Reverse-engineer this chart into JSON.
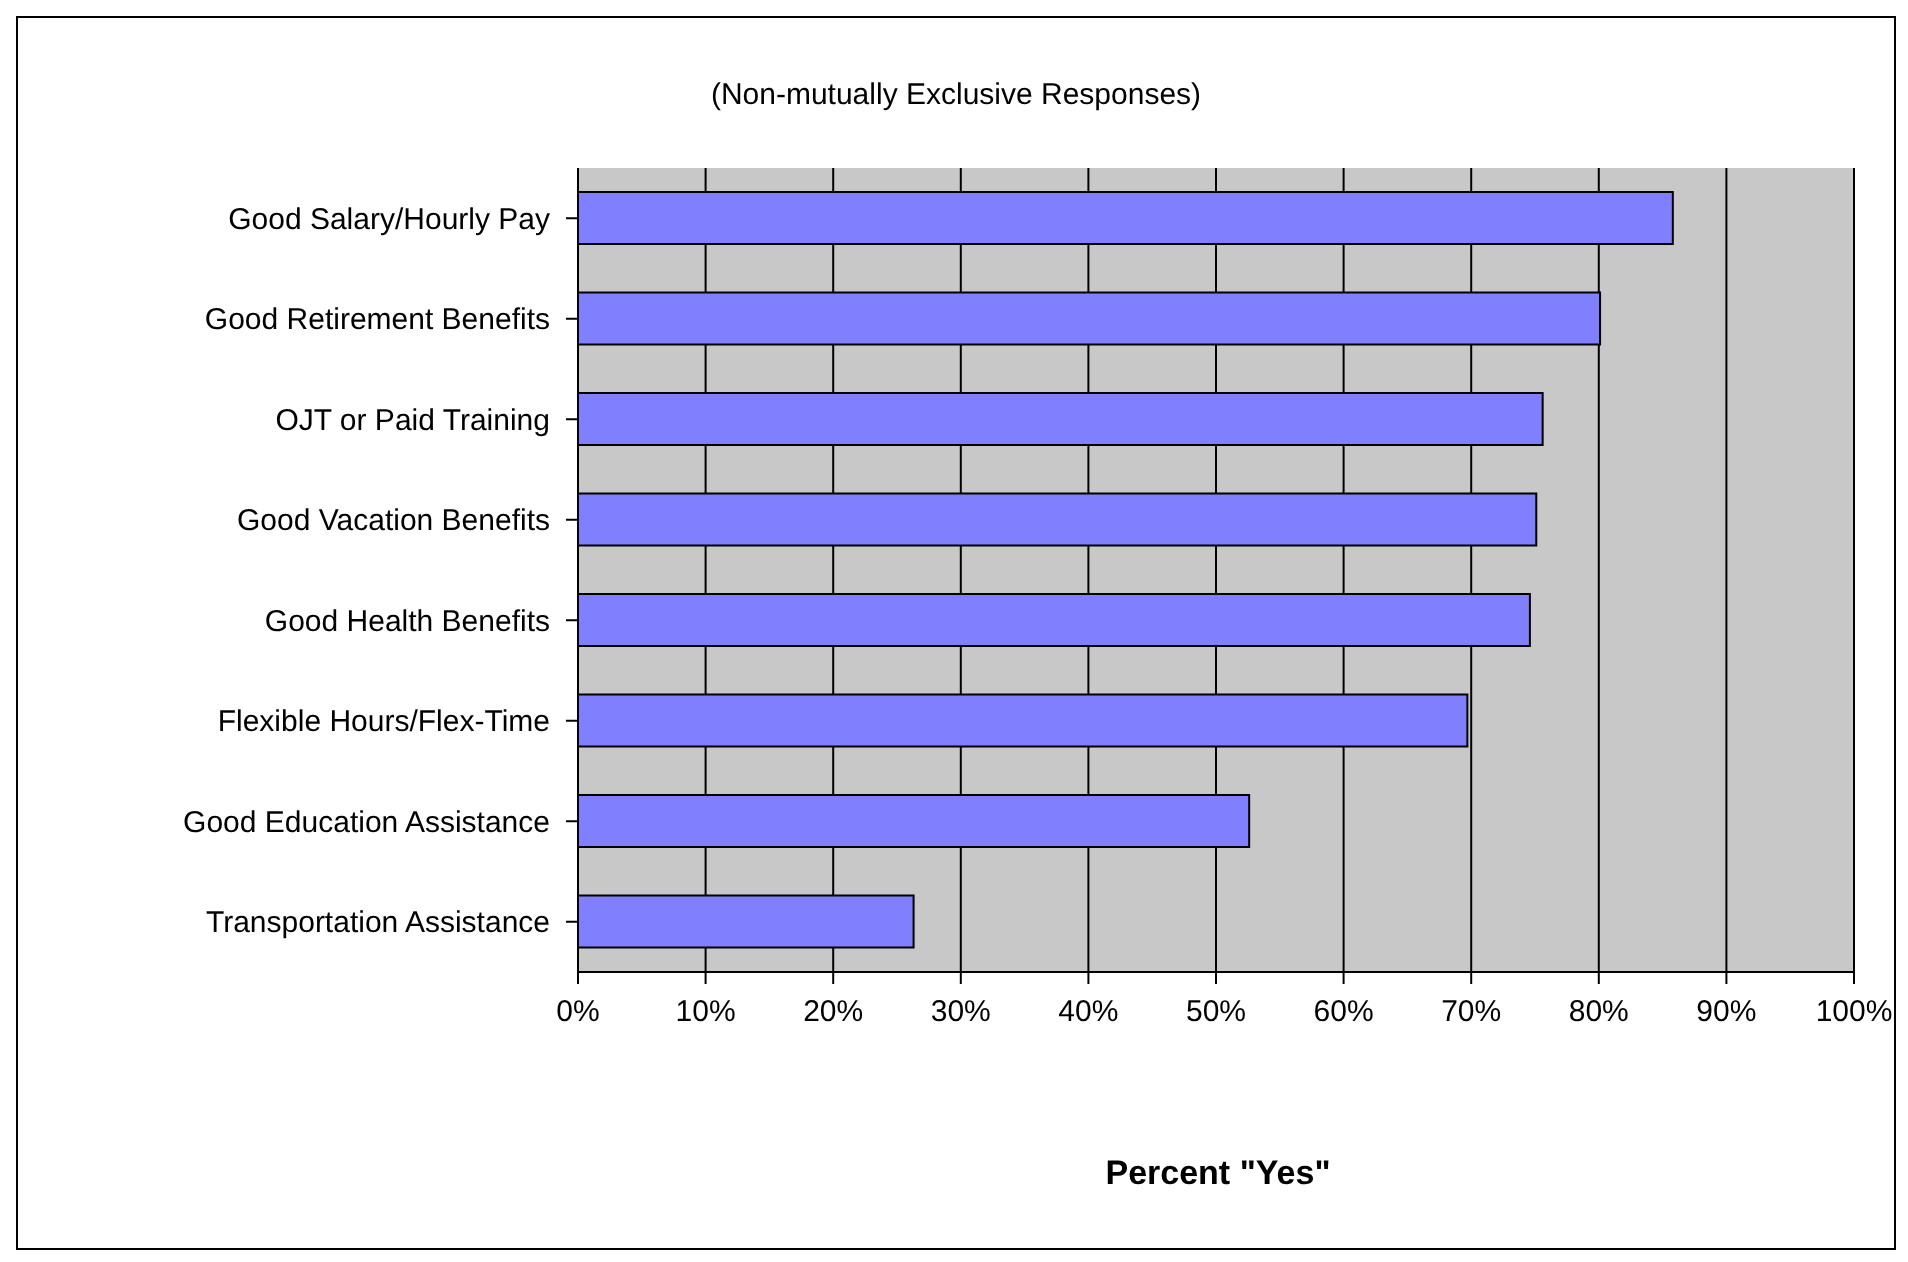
{
  "chart_data": {
    "type": "bar",
    "orientation": "horizontal",
    "subtitle": "(Non-mutually Exclusive Responses)",
    "xlabel": "Percent \"Yes\"",
    "categories": [
      "Good Salary/Hourly Pay",
      "Good Retirement Benefits",
      "OJT or Paid Training",
      "Good Vacation Benefits",
      "Good Health Benefits",
      "Flexible Hours/Flex-Time",
      "Good Education Assistance",
      "Transportation Assistance"
    ],
    "values": [
      85.8,
      80.1,
      75.6,
      75.1,
      74.6,
      69.7,
      52.6,
      26.3
    ],
    "color": "#8080ff",
    "xlim": [
      0,
      100
    ],
    "xticks": [
      {
        "value": 0,
        "label": "0%"
      },
      {
        "value": 10,
        "label": "10%"
      },
      {
        "value": 20,
        "label": "20%"
      },
      {
        "value": 30,
        "label": "30%"
      },
      {
        "value": 40,
        "label": "40%"
      },
      {
        "value": 50,
        "label": "50%"
      },
      {
        "value": 60,
        "label": "60%"
      },
      {
        "value": 70,
        "label": "70%"
      },
      {
        "value": 80,
        "label": "80%"
      },
      {
        "value": 90,
        "label": "90%"
      },
      {
        "value": 100,
        "label": "100%"
      }
    ],
    "grid": "x"
  }
}
